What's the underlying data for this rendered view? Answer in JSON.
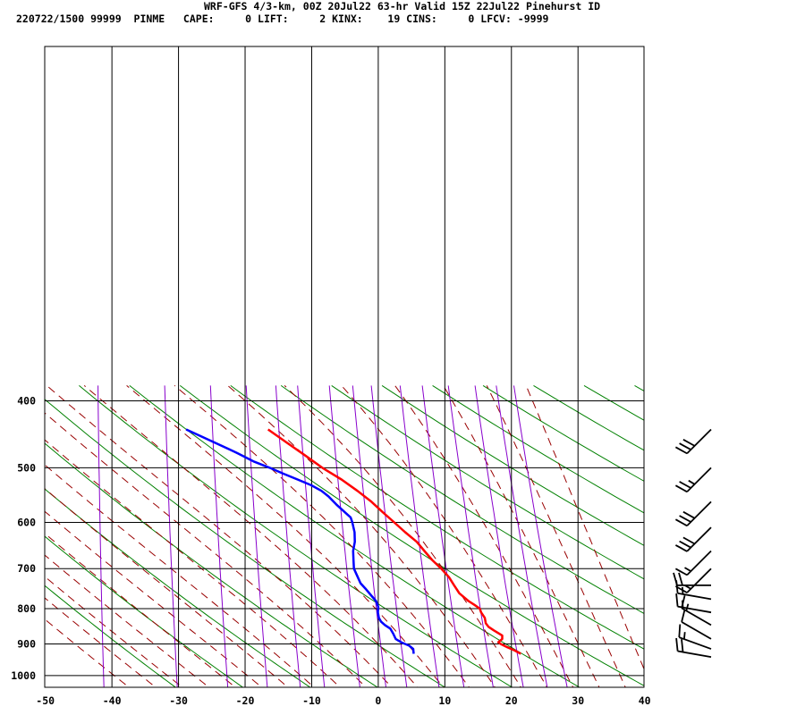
{
  "header": {
    "title": "WRF-GFS 4/3-km, 00Z 20Jul22 63-hr Valid 15Z 22Jul22 Pinehurst ID",
    "subtitle": "220722/1500 99999  PINME   CAPE:     0 LIFT:     2 KINX:    19 CINS:     0 LFCV: -9999"
  },
  "colors": {
    "temperature": "#ff0000",
    "dewpoint": "#0000ff",
    "dry_adiabat": "#008000",
    "moist_adiabat": "#990000",
    "mixing_ratio": "#8800cc",
    "grid": "#000000"
  },
  "chart_data": {
    "type": "line",
    "title": "WRF-GFS 4/3-km, 00Z 20Jul22 63-hr Valid 15Z 22Jul22 Pinehurst ID",
    "xlabel": "",
    "ylabel": "",
    "x_scale": "skewed temperature (Skew-T log-p)",
    "y_scale": "log pressure",
    "xlim": [
      -50,
      40
    ],
    "ylim": [
      1040,
      400
    ],
    "x_ticks": [
      -50,
      -40,
      -30,
      -20,
      -10,
      0,
      10,
      20,
      30,
      40
    ],
    "y_ticks": [
      400,
      500,
      600,
      700,
      800,
      900,
      1000
    ],
    "grid": true,
    "series": [
      {
        "key": "temperature",
        "color": "#ff0000",
        "points": [
          [
            930,
            20.5
          ],
          [
            920,
            19.5
          ],
          [
            910,
            18.3
          ],
          [
            900,
            17.2
          ],
          [
            895,
            16.8
          ],
          [
            885,
            17.3
          ],
          [
            875,
            17.2
          ],
          [
            860,
            15.8
          ],
          [
            850,
            14.9
          ],
          [
            840,
            14.4
          ],
          [
            825,
            14.1
          ],
          [
            810,
            13.4
          ],
          [
            800,
            13.1
          ],
          [
            790,
            12.2
          ],
          [
            780,
            11.2
          ],
          [
            760,
            9.6
          ],
          [
            740,
            8.6
          ],
          [
            720,
            7.6
          ],
          [
            700,
            6.2
          ],
          [
            680,
            4.6
          ],
          [
            660,
            3.2
          ],
          [
            640,
            1.8
          ],
          [
            620,
            -0.2
          ],
          [
            600,
            -2.1
          ],
          [
            580,
            -4.1
          ],
          [
            560,
            -6.1
          ],
          [
            540,
            -8.5
          ],
          [
            520,
            -11.2
          ],
          [
            500,
            -14.4
          ],
          [
            480,
            -17.3
          ],
          [
            460,
            -20.4
          ],
          [
            440,
            -23.6
          ]
        ]
      },
      {
        "key": "dewpoint",
        "color": "#0000ff",
        "points": [
          [
            930,
            4.4
          ],
          [
            915,
            4.2
          ],
          [
            905,
            3.5
          ],
          [
            895,
            2.2
          ],
          [
            885,
            1.3
          ],
          [
            870,
            0.8
          ],
          [
            855,
            0.2
          ],
          [
            845,
            -0.7
          ],
          [
            835,
            -1.4
          ],
          [
            825,
            -1.8
          ],
          [
            810,
            -2.1
          ],
          [
            795,
            -2.2
          ],
          [
            780,
            -2.7
          ],
          [
            765,
            -3.6
          ],
          [
            750,
            -4.5
          ],
          [
            735,
            -5.5
          ],
          [
            715,
            -6.3
          ],
          [
            700,
            -6.9
          ],
          [
            680,
            -7.2
          ],
          [
            660,
            -7.5
          ],
          [
            640,
            -7.5
          ],
          [
            620,
            -7.8
          ],
          [
            600,
            -8.4
          ],
          [
            590,
            -8.8
          ],
          [
            580,
            -9.8
          ],
          [
            565,
            -11.3
          ],
          [
            550,
            -12.7
          ],
          [
            540,
            -13.9
          ],
          [
            530,
            -15.6
          ],
          [
            520,
            -17.8
          ],
          [
            510,
            -20.1
          ],
          [
            500,
            -22.3
          ],
          [
            490,
            -24.8
          ],
          [
            475,
            -27.8
          ],
          [
            460,
            -31.2
          ],
          [
            440,
            -35.9
          ]
        ]
      }
    ],
    "wind_barbs": [
      {
        "pressure": 440,
        "direction": 225,
        "speed_kt": 30
      },
      {
        "pressure": 500,
        "direction": 225,
        "speed_kt": 25
      },
      {
        "pressure": 560,
        "direction": 225,
        "speed_kt": 30
      },
      {
        "pressure": 610,
        "direction": 225,
        "speed_kt": 30
      },
      {
        "pressure": 660,
        "direction": 225,
        "speed_kt": 15
      },
      {
        "pressure": 700,
        "direction": 225,
        "speed_kt": 15
      },
      {
        "pressure": 740,
        "direction": 270,
        "speed_kt": 20
      },
      {
        "pressure": 775,
        "direction": 280,
        "speed_kt": 15
      },
      {
        "pressure": 810,
        "direction": 280,
        "speed_kt": 15
      },
      {
        "pressure": 845,
        "direction": 300,
        "speed_kt": 15
      },
      {
        "pressure": 885,
        "direction": 300,
        "speed_kt": 10
      },
      {
        "pressure": 915,
        "direction": 290,
        "speed_kt": 15
      },
      {
        "pressure": 940,
        "direction": 280,
        "speed_kt": 20
      }
    ]
  }
}
